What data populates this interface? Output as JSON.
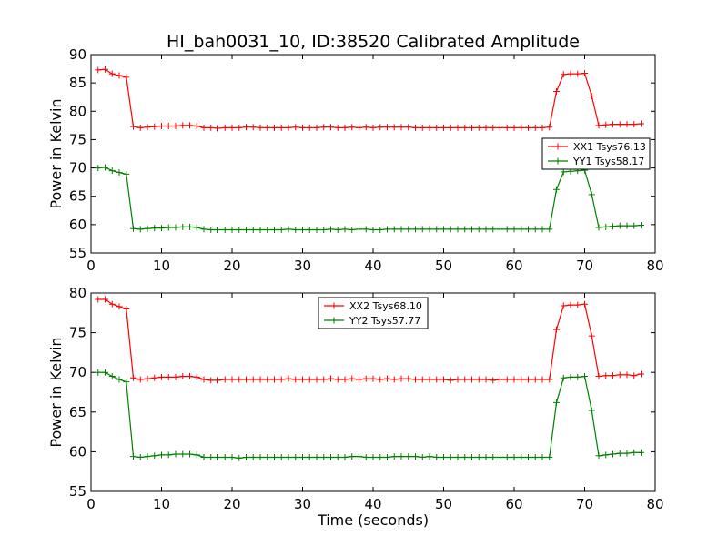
{
  "chart_data": [
    {
      "type": "line",
      "title": "HI_bah0031_10, ID:38520 Calibrated Amplitude",
      "xlabel": "",
      "ylabel": "Power in Kelvin",
      "xlim": [
        0,
        80
      ],
      "ylim": [
        55,
        90
      ],
      "xticks": [
        0,
        10,
        20,
        30,
        40,
        50,
        60,
        70,
        80
      ],
      "yticks": [
        55,
        60,
        65,
        70,
        75,
        80,
        85,
        90
      ],
      "grid": false,
      "legend_position": "right",
      "x": [
        1,
        2,
        3,
        4,
        5,
        6,
        7,
        8,
        9,
        10,
        11,
        12,
        13,
        14,
        15,
        16,
        17,
        18,
        19,
        20,
        21,
        22,
        23,
        24,
        25,
        26,
        27,
        28,
        29,
        30,
        31,
        32,
        33,
        34,
        35,
        36,
        37,
        38,
        39,
        40,
        41,
        42,
        43,
        44,
        45,
        46,
        47,
        48,
        49,
        50,
        51,
        52,
        53,
        54,
        55,
        56,
        57,
        58,
        59,
        60,
        61,
        62,
        63,
        64,
        65,
        66,
        67,
        68,
        69,
        70,
        71,
        72,
        73,
        74,
        75,
        76,
        77,
        78
      ],
      "series": [
        {
          "name": "XX1 Tsys76.13",
          "color": "#ff0000",
          "values": [
            87.3,
            87.4,
            86.6,
            86.3,
            86.0,
            77.3,
            77.1,
            77.2,
            77.3,
            77.4,
            77.4,
            77.4,
            77.5,
            77.5,
            77.4,
            77.1,
            77.1,
            77.0,
            77.1,
            77.1,
            77.1,
            77.2,
            77.2,
            77.1,
            77.1,
            77.1,
            77.1,
            77.1,
            77.2,
            77.1,
            77.1,
            77.1,
            77.2,
            77.2,
            77.1,
            77.1,
            77.2,
            77.1,
            77.2,
            77.1,
            77.2,
            77.2,
            77.2,
            77.2,
            77.2,
            77.1,
            77.1,
            77.1,
            77.1,
            77.1,
            77.1,
            77.1,
            77.1,
            77.1,
            77.1,
            77.1,
            77.1,
            77.1,
            77.1,
            77.1,
            77.1,
            77.1,
            77.1,
            77.1,
            77.2,
            83.5,
            86.5,
            86.6,
            86.6,
            86.7,
            82.7,
            77.5,
            77.6,
            77.7,
            77.7,
            77.7,
            77.7,
            77.8
          ]
        },
        {
          "name": "YY1 Tsys58.17",
          "color": "#008000",
          "values": [
            70.0,
            70.1,
            69.5,
            69.2,
            68.9,
            59.3,
            59.2,
            59.3,
            59.4,
            59.4,
            59.5,
            59.5,
            59.6,
            59.6,
            59.5,
            59.2,
            59.1,
            59.1,
            59.1,
            59.1,
            59.1,
            59.1,
            59.1,
            59.1,
            59.1,
            59.1,
            59.1,
            59.2,
            59.1,
            59.1,
            59.1,
            59.1,
            59.1,
            59.2,
            59.1,
            59.2,
            59.1,
            59.2,
            59.2,
            59.1,
            59.1,
            59.2,
            59.2,
            59.2,
            59.2,
            59.2,
            59.2,
            59.2,
            59.2,
            59.2,
            59.2,
            59.2,
            59.2,
            59.2,
            59.2,
            59.2,
            59.2,
            59.2,
            59.2,
            59.2,
            59.2,
            59.2,
            59.2,
            59.2,
            59.2,
            66.2,
            69.3,
            69.4,
            69.5,
            69.6,
            65.3,
            59.5,
            59.6,
            59.7,
            59.8,
            59.8,
            59.8,
            59.9
          ]
        }
      ]
    },
    {
      "type": "line",
      "title": "",
      "xlabel": "Time (seconds)",
      "ylabel": "Power in Kelvin",
      "xlim": [
        0,
        80
      ],
      "ylim": [
        55,
        80
      ],
      "xticks": [
        0,
        10,
        20,
        30,
        40,
        50,
        60,
        70,
        80
      ],
      "yticks": [
        55,
        60,
        65,
        70,
        75,
        80
      ],
      "grid": false,
      "legend_position": "top-center",
      "x": [
        1,
        2,
        3,
        4,
        5,
        6,
        7,
        8,
        9,
        10,
        11,
        12,
        13,
        14,
        15,
        16,
        17,
        18,
        19,
        20,
        21,
        22,
        23,
        24,
        25,
        26,
        27,
        28,
        29,
        30,
        31,
        32,
        33,
        34,
        35,
        36,
        37,
        38,
        39,
        40,
        41,
        42,
        43,
        44,
        45,
        46,
        47,
        48,
        49,
        50,
        51,
        52,
        53,
        54,
        55,
        56,
        57,
        58,
        59,
        60,
        61,
        62,
        63,
        64,
        65,
        66,
        67,
        68,
        69,
        70,
        71,
        72,
        73,
        74,
        75,
        76,
        77,
        78
      ],
      "series": [
        {
          "name": "XX2 Tsys68.10",
          "color": "#ff0000",
          "values": [
            79.2,
            79.2,
            78.6,
            78.3,
            78.0,
            69.3,
            69.1,
            69.2,
            69.3,
            69.4,
            69.4,
            69.4,
            69.5,
            69.5,
            69.4,
            69.1,
            69.0,
            69.0,
            69.1,
            69.1,
            69.1,
            69.1,
            69.1,
            69.1,
            69.1,
            69.1,
            69.1,
            69.2,
            69.1,
            69.1,
            69.1,
            69.1,
            69.1,
            69.2,
            69.1,
            69.1,
            69.2,
            69.1,
            69.2,
            69.2,
            69.1,
            69.2,
            69.1,
            69.2,
            69.2,
            69.1,
            69.1,
            69.1,
            69.1,
            69.1,
            69.0,
            69.1,
            69.1,
            69.1,
            69.1,
            69.1,
            69.0,
            69.1,
            69.1,
            69.1,
            69.1,
            69.1,
            69.1,
            69.1,
            69.1,
            75.4,
            78.4,
            78.5,
            78.5,
            78.6,
            74.6,
            69.5,
            69.6,
            69.6,
            69.7,
            69.7,
            69.6,
            69.8
          ]
        },
        {
          "name": "YY2 Tsys57.77",
          "color": "#008000",
          "values": [
            70.0,
            70.0,
            69.5,
            69.1,
            68.8,
            59.4,
            59.3,
            59.4,
            59.5,
            59.6,
            59.6,
            59.7,
            59.7,
            59.7,
            59.6,
            59.3,
            59.3,
            59.3,
            59.3,
            59.3,
            59.2,
            59.3,
            59.3,
            59.3,
            59.3,
            59.3,
            59.3,
            59.3,
            59.3,
            59.3,
            59.3,
            59.3,
            59.3,
            59.3,
            59.3,
            59.3,
            59.4,
            59.4,
            59.3,
            59.3,
            59.3,
            59.3,
            59.4,
            59.4,
            59.4,
            59.4,
            59.3,
            59.4,
            59.3,
            59.3,
            59.3,
            59.3,
            59.3,
            59.3,
            59.3,
            59.3,
            59.3,
            59.3,
            59.3,
            59.3,
            59.3,
            59.3,
            59.3,
            59.3,
            59.3,
            66.2,
            69.3,
            69.4,
            69.4,
            69.5,
            65.2,
            59.5,
            59.6,
            59.7,
            59.8,
            59.8,
            59.9,
            59.9
          ]
        }
      ]
    }
  ]
}
